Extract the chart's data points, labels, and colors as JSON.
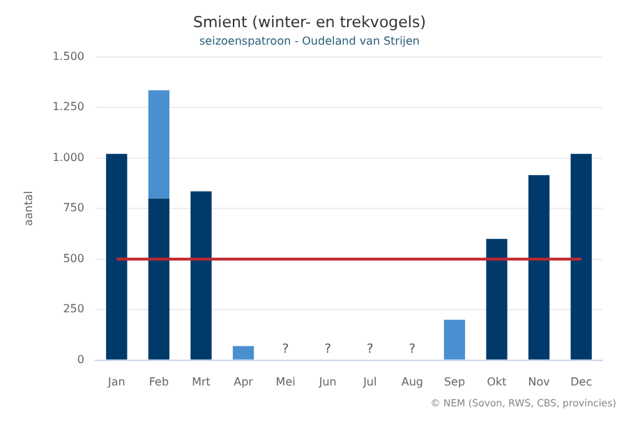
{
  "chart_data": {
    "type": "bar",
    "title": "Smient (winter- en trekvogels)",
    "subtitle": "seizoenspatroon - Oudeland van Strijen",
    "ylabel": "aantal",
    "categories": [
      "Jan",
      "Feb",
      "Mrt",
      "Apr",
      "Mei",
      "Jun",
      "Jul",
      "Aug",
      "Sep",
      "Okt",
      "Nov",
      "Dec"
    ],
    "stacked": true,
    "series": [
      {
        "color": "#003a6b",
        "values": [
          1020,
          800,
          835,
          null,
          null,
          null,
          null,
          null,
          null,
          600,
          915,
          1020
        ],
        "value_labels": [
          null,
          null,
          null,
          null,
          "?",
          "?",
          "?",
          "?",
          null,
          null,
          null,
          null
        ]
      },
      {
        "color": "#4a90d0",
        "values": [
          null,
          535,
          null,
          70,
          null,
          null,
          null,
          null,
          200,
          null,
          null,
          null
        ]
      }
    ],
    "ylim": [
      0,
      1500
    ],
    "yticks": [
      0,
      250,
      500,
      750,
      {
        "value": 1000,
        "label": "1.000"
      },
      {
        "value": 1250,
        "label": "1.250"
      },
      {
        "value": 1500,
        "label": "1.500"
      }
    ],
    "grid": "y",
    "legend": false,
    "ref_lines": [
      {
        "axis": "y",
        "value": 500,
        "color": "#c0282d"
      }
    ],
    "annotations": [
      "© NEM (Sovon, RWS, CBS, provincies)"
    ]
  }
}
